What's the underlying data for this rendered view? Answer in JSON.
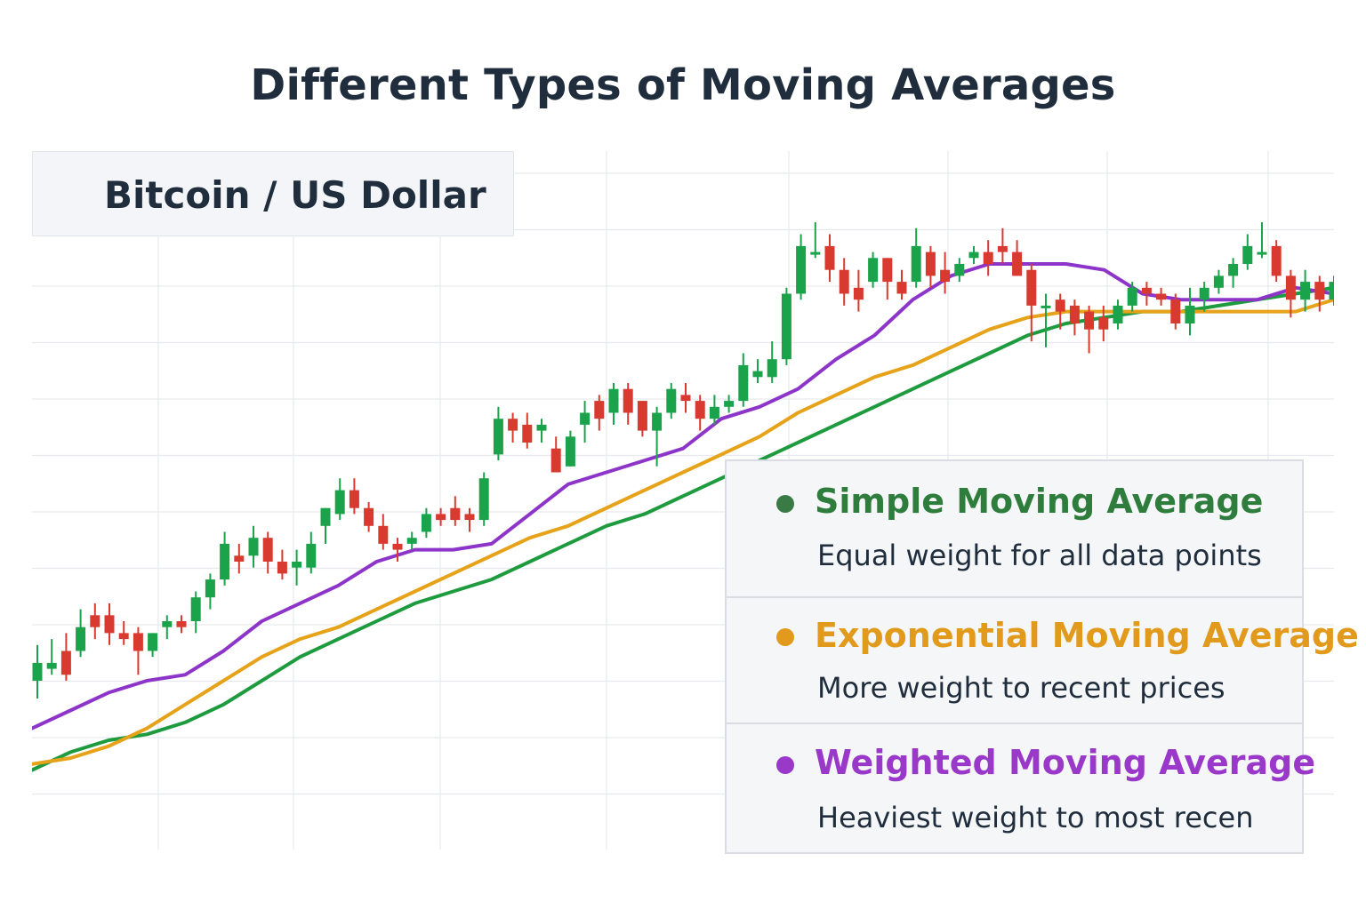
{
  "title": "Different Types of Moving Averages",
  "symbol": "Bitcoin / US Dollar",
  "colors": {
    "up": "#1aa34a",
    "down": "#d83a2f",
    "sma": "#1e9b3e",
    "ema": "#e6a219",
    "wma": "#8e35c9",
    "grid": "#e6e9ed"
  },
  "legend": [
    {
      "name": "Simple Moving Average",
      "desc": "Equal weight for all data points",
      "color": "#2f7d3d",
      "dot_color": "#3a7a44"
    },
    {
      "name": "Exponential Moving Average",
      "desc": "More weight to recent prices",
      "color": "#e19a1b",
      "dot_color": "#e19a1b"
    },
    {
      "name": "Weighted Moving Average",
      "desc": "Heaviest weight to most recen",
      "color": "#9a39c9",
      "dot_color": "#9a39c9"
    }
  ],
  "chart_data": {
    "type": "candlestick",
    "title": "Bitcoin / US Dollar",
    "grid": true,
    "ylim": [
      0,
      100
    ],
    "candles": [
      {
        "o": 20,
        "c": 23,
        "h": 26,
        "l": 17
      },
      {
        "o": 22,
        "c": 23,
        "h": 27,
        "l": 21
      },
      {
        "o": 25,
        "c": 21,
        "h": 28,
        "l": 20
      },
      {
        "o": 25,
        "c": 29,
        "h": 32,
        "l": 24
      },
      {
        "o": 31,
        "c": 29,
        "h": 33,
        "l": 27
      },
      {
        "o": 31,
        "c": 28,
        "h": 33,
        "l": 26
      },
      {
        "o": 28,
        "c": 27,
        "h": 30,
        "l": 26
      },
      {
        "o": 28,
        "c": 25,
        "h": 29,
        "l": 21
      },
      {
        "o": 25,
        "c": 28,
        "h": 28,
        "l": 24
      },
      {
        "o": 29,
        "c": 30,
        "h": 31,
        "l": 27
      },
      {
        "o": 30,
        "c": 29,
        "h": 31,
        "l": 28
      },
      {
        "o": 30,
        "c": 34,
        "h": 35,
        "l": 28
      },
      {
        "o": 34,
        "c": 37,
        "h": 38,
        "l": 32
      },
      {
        "o": 37,
        "c": 43,
        "h": 45,
        "l": 36
      },
      {
        "o": 41,
        "c": 40,
        "h": 43,
        "l": 38
      },
      {
        "o": 41,
        "c": 44,
        "h": 46,
        "l": 39
      },
      {
        "o": 44,
        "c": 40,
        "h": 45,
        "l": 38
      },
      {
        "o": 40,
        "c": 38,
        "h": 42,
        "l": 37
      },
      {
        "o": 39,
        "c": 40,
        "h": 42,
        "l": 36
      },
      {
        "o": 39,
        "c": 43,
        "h": 45,
        "l": 38
      },
      {
        "o": 46,
        "c": 49,
        "h": 49,
        "l": 43
      },
      {
        "o": 48,
        "c": 52,
        "h": 54,
        "l": 47
      },
      {
        "o": 52,
        "c": 49,
        "h": 54,
        "l": 48
      },
      {
        "o": 49,
        "c": 46,
        "h": 50,
        "l": 45
      },
      {
        "o": 46,
        "c": 43,
        "h": 48,
        "l": 42
      },
      {
        "o": 43,
        "c": 42,
        "h": 44,
        "l": 40
      },
      {
        "o": 43,
        "c": 44,
        "h": 45,
        "l": 42
      },
      {
        "o": 45,
        "c": 48,
        "h": 49,
        "l": 44
      },
      {
        "o": 48,
        "c": 47,
        "h": 49,
        "l": 46
      },
      {
        "o": 49,
        "c": 47,
        "h": 51,
        "l": 46
      },
      {
        "o": 48,
        "c": 47,
        "h": 49,
        "l": 45
      },
      {
        "o": 47,
        "c": 54,
        "h": 55,
        "l": 46
      },
      {
        "o": 58,
        "c": 64,
        "h": 66,
        "l": 57
      },
      {
        "o": 64,
        "c": 62,
        "h": 65,
        "l": 60
      },
      {
        "o": 63,
        "c": 60,
        "h": 65,
        "l": 59
      },
      {
        "o": 62,
        "c": 63,
        "h": 64,
        "l": 60
      },
      {
        "o": 59,
        "c": 55,
        "h": 61,
        "l": 55
      },
      {
        "o": 56,
        "c": 61,
        "h": 62,
        "l": 56
      },
      {
        "o": 63,
        "c": 65,
        "h": 67,
        "l": 60
      },
      {
        "o": 67,
        "c": 64,
        "h": 68,
        "l": 62
      },
      {
        "o": 65,
        "c": 69,
        "h": 70,
        "l": 63
      },
      {
        "o": 69,
        "c": 65,
        "h": 70,
        "l": 63
      },
      {
        "o": 67,
        "c": 62,
        "h": 67,
        "l": 61
      },
      {
        "o": 62,
        "c": 65,
        "h": 66,
        "l": 56
      },
      {
        "o": 65,
        "c": 69,
        "h": 70,
        "l": 64
      },
      {
        "o": 68,
        "c": 67,
        "h": 70,
        "l": 65
      },
      {
        "o": 67,
        "c": 64,
        "h": 68,
        "l": 62
      },
      {
        "o": 64,
        "c": 66,
        "h": 68,
        "l": 63
      },
      {
        "o": 66,
        "c": 67,
        "h": 68,
        "l": 65
      },
      {
        "o": 67,
        "c": 73,
        "h": 75,
        "l": 66
      },
      {
        "o": 71,
        "c": 72,
        "h": 74,
        "l": 70
      },
      {
        "o": 71,
        "c": 74,
        "h": 77,
        "l": 70
      },
      {
        "o": 74,
        "c": 85,
        "h": 86,
        "l": 73
      },
      {
        "o": 85,
        "c": 93,
        "h": 95,
        "l": 84
      },
      {
        "o": 92,
        "c": 92,
        "h": 97,
        "l": 91
      },
      {
        "o": 93,
        "c": 89,
        "h": 95,
        "l": 87
      },
      {
        "o": 89,
        "c": 85,
        "h": 91,
        "l": 83
      },
      {
        "o": 86,
        "c": 84,
        "h": 89,
        "l": 82
      },
      {
        "o": 87,
        "c": 91,
        "h": 92,
        "l": 86
      },
      {
        "o": 91,
        "c": 87,
        "h": 91,
        "l": 84
      },
      {
        "o": 87,
        "c": 85,
        "h": 89,
        "l": 84
      },
      {
        "o": 87,
        "c": 93,
        "h": 96,
        "l": 86
      },
      {
        "o": 92,
        "c": 88,
        "h": 93,
        "l": 86
      },
      {
        "o": 89,
        "c": 87,
        "h": 92,
        "l": 85
      },
      {
        "o": 88,
        "c": 90,
        "h": 91,
        "l": 87
      },
      {
        "o": 91,
        "c": 92,
        "h": 93,
        "l": 90
      },
      {
        "o": 92,
        "c": 90,
        "h": 94,
        "l": 88
      },
      {
        "o": 93,
        "c": 92,
        "h": 96,
        "l": 90
      },
      {
        "o": 92,
        "c": 88,
        "h": 94,
        "l": 88
      },
      {
        "o": 89,
        "c": 83,
        "h": 90,
        "l": 77
      },
      {
        "o": 83,
        "c": 83,
        "h": 85,
        "l": 76
      },
      {
        "o": 84,
        "c": 82,
        "h": 85,
        "l": 79
      },
      {
        "o": 83,
        "c": 80,
        "h": 84,
        "l": 78
      },
      {
        "o": 82,
        "c": 79,
        "h": 83,
        "l": 75
      },
      {
        "o": 81,
        "c": 79,
        "h": 83,
        "l": 77
      },
      {
        "o": 80,
        "c": 83,
        "h": 84,
        "l": 79
      },
      {
        "o": 83,
        "c": 86,
        "h": 87,
        "l": 82
      },
      {
        "o": 86,
        "c": 85,
        "h": 87,
        "l": 83
      },
      {
        "o": 85,
        "c": 84,
        "h": 86,
        "l": 83
      },
      {
        "o": 84,
        "c": 80,
        "h": 85,
        "l": 79
      },
      {
        "o": 80,
        "c": 83,
        "h": 86,
        "l": 78
      },
      {
        "o": 84,
        "c": 86,
        "h": 87,
        "l": 82
      },
      {
        "o": 86,
        "c": 88,
        "h": 89,
        "l": 85
      },
      {
        "o": 88,
        "c": 90,
        "h": 91,
        "l": 86
      },
      {
        "o": 90,
        "c": 93,
        "h": 95,
        "l": 89
      },
      {
        "o": 92,
        "c": 92,
        "h": 97,
        "l": 91
      },
      {
        "o": 93,
        "c": 88,
        "h": 94,
        "l": 87
      },
      {
        "o": 88,
        "c": 84,
        "h": 89,
        "l": 81
      },
      {
        "o": 84,
        "c": 87,
        "h": 89,
        "l": 82
      },
      {
        "o": 87,
        "c": 84,
        "h": 88,
        "l": 82
      },
      {
        "o": 84,
        "c": 87,
        "h": 88,
        "l": 83
      }
    ],
    "series": [
      {
        "name": "Simple Moving Average",
        "color": "#1e9b3e",
        "values": [
          5,
          8,
          10,
          11,
          13,
          16,
          20,
          24,
          27,
          30,
          33,
          35,
          37,
          40,
          43,
          46,
          48,
          51,
          54,
          57,
          60,
          63,
          66,
          69,
          72,
          75,
          78,
          80,
          81,
          82,
          82,
          83,
          84,
          85,
          86
        ]
      },
      {
        "name": "Exponential Moving Average",
        "color": "#e6a219",
        "values": [
          6,
          7,
          9,
          12,
          16,
          20,
          24,
          27,
          29,
          32,
          35,
          38,
          41,
          44,
          46,
          49,
          52,
          55,
          58,
          61,
          65,
          68,
          71,
          73,
          76,
          79,
          81,
          82,
          82,
          82,
          82,
          82,
          82,
          82,
          84
        ]
      },
      {
        "name": "Weighted Moving Average",
        "color": "#8e35c9",
        "values": [
          12,
          15,
          18,
          20,
          21,
          25,
          30,
          33,
          36,
          40,
          42,
          42,
          43,
          48,
          53,
          55,
          57,
          59,
          64,
          66,
          69,
          74,
          78,
          84,
          88,
          90,
          90,
          90,
          89,
          85,
          84,
          84,
          84,
          86,
          85
        ]
      }
    ]
  }
}
